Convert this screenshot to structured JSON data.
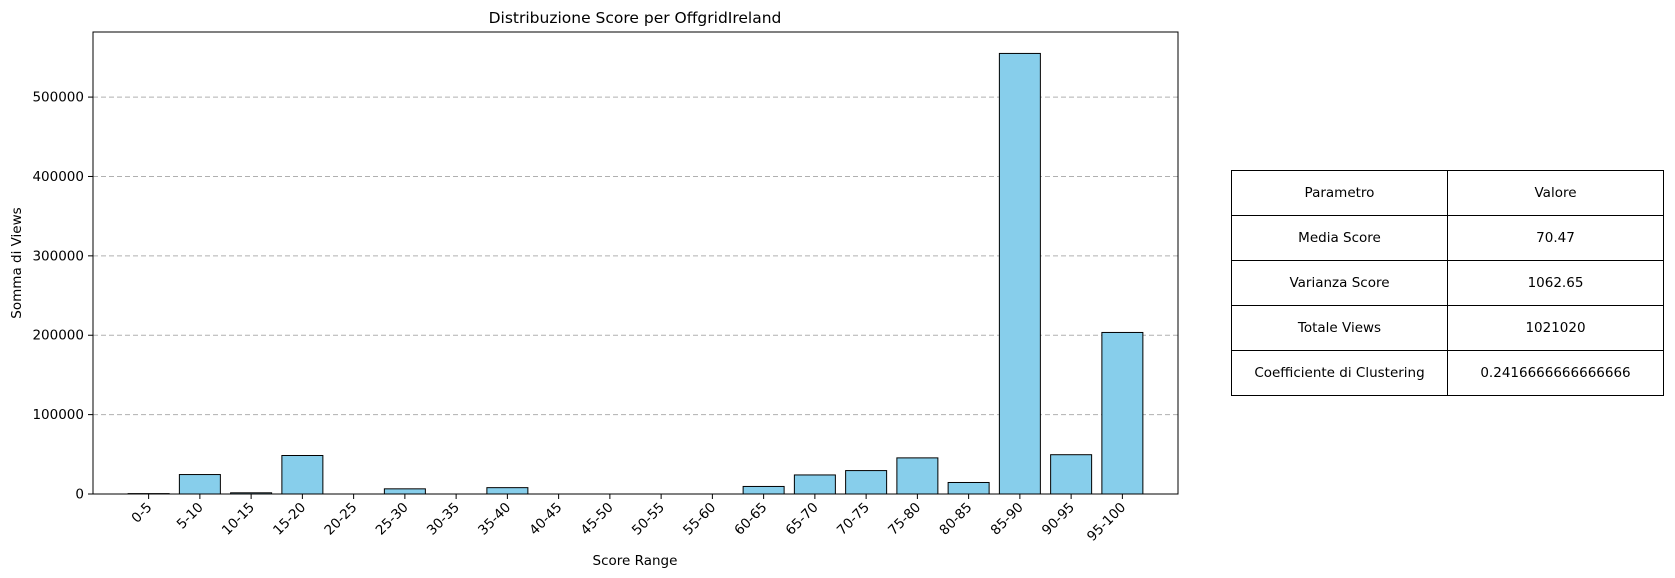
{
  "chart_data": {
    "type": "bar",
    "title": "Distribuzione Score per OffgridIreland",
    "xlabel": "Score Range",
    "ylabel": "Somma di Views",
    "categories": [
      "0-5",
      "5-10",
      "10-15",
      "15-20",
      "20-25",
      "25-30",
      "30-35",
      "35-40",
      "40-45",
      "45-50",
      "50-55",
      "55-60",
      "60-65",
      "65-70",
      "70-75",
      "75-80",
      "80-85",
      "85-90",
      "90-95",
      "95-100"
    ],
    "values": [
      500,
      24500,
      1500,
      48500,
      0,
      6500,
      0,
      8000,
      0,
      0,
      0,
      0,
      9500,
      24000,
      29500,
      45500,
      14500,
      555000,
      49500,
      203500
    ],
    "ylim": [
      0,
      582000
    ],
    "yticks": [
      0,
      100000,
      200000,
      300000,
      400000,
      500000
    ],
    "grid": "y-dashed",
    "bar_color": "#87CEEB",
    "edge_color": "#000000"
  },
  "table": {
    "header": [
      "Parametro",
      "Valore"
    ],
    "rows": [
      [
        "Media Score",
        "70.47"
      ],
      [
        "Varianza Score",
        "1062.65"
      ],
      [
        "Totale Views",
        "1021020"
      ],
      [
        "Coefficiente di Clustering",
        "0.2416666666666666"
      ]
    ]
  }
}
